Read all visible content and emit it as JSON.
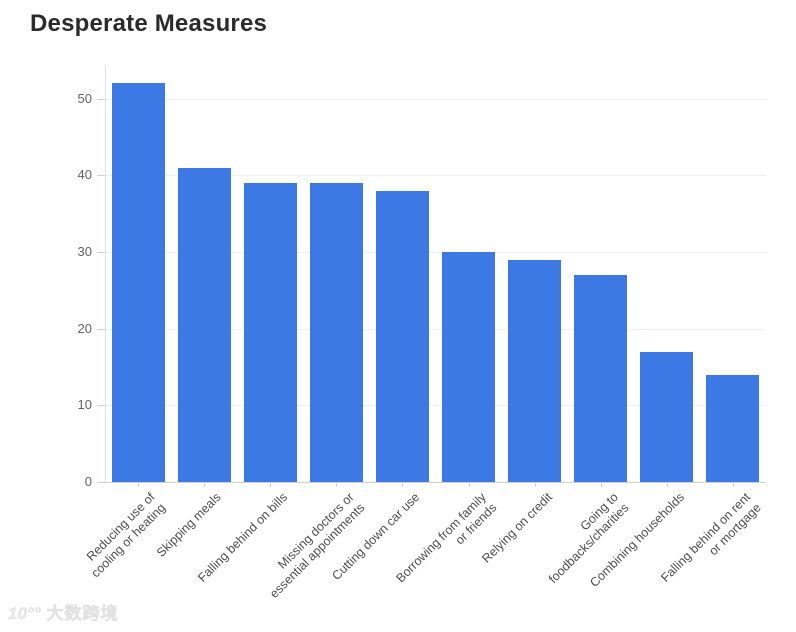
{
  "watermark": {
    "logo_text": "10°°",
    "brand_text": "大数跨境"
  },
  "chart_data": {
    "type": "bar",
    "title": "Desperate Measures",
    "categories": [
      "Reducing use of\ncooling or heating",
      "Skipping meals",
      "Falling behind on bills",
      "Missing doctors or\nessential appointments",
      "Cutting down car use",
      "Borrowing from family\nor friends",
      "Relying on credit",
      "Going to\nfoodbacks/charities",
      "Combining households",
      "Falling behind on rent\nor mortgage"
    ],
    "values": [
      52,
      41,
      39,
      39,
      38,
      30,
      29,
      27,
      17,
      14
    ],
    "yticks": [
      0,
      10,
      20,
      30,
      40,
      50
    ],
    "ylim": [
      0,
      54.4
    ],
    "xlabel": "",
    "ylabel": "",
    "bar_color": "#3d79e5",
    "grid": true,
    "legend_position": "none"
  }
}
